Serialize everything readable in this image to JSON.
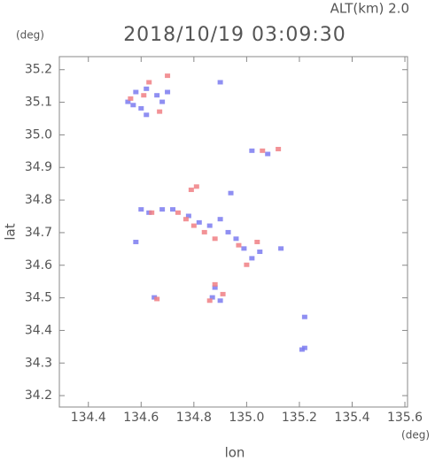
{
  "chart_data": {
    "type": "scatter",
    "title": "2018/10/19 03:09:30",
    "subtitle": "ALT(km) 2.0",
    "y_unit": "(deg)",
    "x_unit": "(deg)",
    "ylabel": "lat",
    "xlabel": "lon",
    "xlim": [
      134.29,
      135.61
    ],
    "ylim": [
      34.165,
      35.24
    ],
    "xticks": [
      134.4,
      134.6,
      134.8,
      {
        "value": 135,
        "label": "135.0"
      },
      135.2,
      135.4,
      135.6
    ],
    "yticks": [
      34.2,
      34.3,
      34.4,
      34.5,
      34.6,
      34.7,
      34.8,
      34.9,
      {
        "value": 35,
        "label": "35.0"
      },
      35.1,
      35.2
    ],
    "series": [
      {
        "color": "#7b7bf0",
        "x": [
          134.55,
          134.57,
          134.6,
          134.62,
          134.58,
          134.62,
          134.66,
          134.68,
          134.7,
          134.9,
          135.02,
          135.08,
          134.94,
          134.58,
          134.6,
          134.63,
          134.68,
          134.72,
          134.78,
          134.82,
          134.86,
          134.9,
          134.93,
          134.96,
          134.99,
          135.02,
          135.05,
          135.13,
          134.65,
          134.87,
          134.88,
          134.9,
          135.22,
          135.21,
          135.22
        ],
        "y": [
          35.1,
          35.09,
          35.08,
          35.06,
          35.13,
          35.14,
          35.12,
          35.1,
          35.13,
          35.16,
          34.95,
          34.94,
          34.82,
          34.67,
          34.77,
          34.76,
          34.77,
          34.77,
          34.75,
          34.73,
          34.72,
          34.74,
          34.7,
          34.68,
          34.65,
          34.62,
          34.64,
          34.65,
          34.5,
          34.5,
          34.53,
          34.49,
          34.44,
          34.34,
          34.345
        ]
      },
      {
        "color": "#f07f84",
        "x": [
          134.56,
          134.61,
          134.63,
          134.67,
          134.7,
          135.06,
          135.12,
          134.79,
          134.81,
          134.64,
          134.74,
          134.77,
          134.8,
          134.84,
          134.88,
          134.97,
          135.0,
          135.04,
          134.86,
          134.88,
          134.91,
          134.66
        ],
        "y": [
          35.11,
          35.12,
          35.16,
          35.07,
          35.18,
          34.95,
          34.955,
          34.83,
          34.84,
          34.76,
          34.76,
          34.74,
          34.72,
          34.7,
          34.68,
          34.66,
          34.6,
          34.67,
          34.49,
          34.54,
          34.51,
          34.495
        ]
      }
    ]
  }
}
